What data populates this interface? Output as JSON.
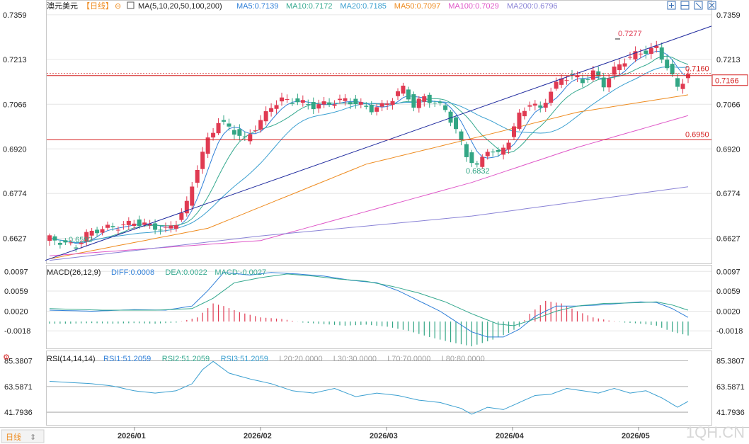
{
  "instrument": {
    "name": "澳元美元",
    "period": "日线",
    "period_bracketed": "【日线】",
    "ma_label": "MA(5,10,20,50,100,200)"
  },
  "legend": {
    "ma": [
      {
        "label": "MA5:0.7139",
        "color": "#2f7fd8"
      },
      {
        "label": "MA10:0.7172",
        "color": "#35a98f"
      },
      {
        "label": "MA20:0.7185",
        "color": "#3a9fd0"
      },
      {
        "label": "MA50:0.7097",
        "color": "#ee8b1f"
      },
      {
        "label": "MA100:0.7029",
        "color": "#df57c8"
      },
      {
        "label": "MA200:0.6796",
        "color": "#8a83d6"
      }
    ],
    "macd_title": "MACD(26,12,9)",
    "macd": [
      {
        "label": "DIFF:0.0008",
        "color": "#2f7fd8"
      },
      {
        "label": "DEA:0.0022",
        "color": "#35a98f"
      },
      {
        "label": "MACD:-0.0027",
        "color": "#35a98f"
      }
    ],
    "rsi_title": "RSI(14,14,14)",
    "rsi": [
      {
        "label": "RSI1:51.2059",
        "color": "#2f7fd8"
      },
      {
        "label": "RSI2:51.2059",
        "color": "#35a98f"
      },
      {
        "label": "RSI3:51.2059",
        "color": "#3a9fd0"
      },
      {
        "label": "L20:20.0000",
        "color": "#a0a0a0"
      },
      {
        "label": "L30:30.0000",
        "color": "#a0a0a0"
      },
      {
        "label": "L70:70.0000",
        "color": "#a0a0a0"
      },
      {
        "label": "L80:80.0000",
        "color": "#a0a0a0"
      }
    ]
  },
  "colors": {
    "up": "#e03a52",
    "down": "#33a685",
    "trendline": "#1f2a9e",
    "hline": "#d42020",
    "grid": "#e6e6e6"
  },
  "annotations": {
    "high": "0.7277",
    "low_mid": "0.6832",
    "low_start": "0.6592",
    "level_upper": "0.7160",
    "level_lower": "0.6950",
    "current": "0.7166"
  },
  "bottom_bar": {
    "period_label": "日线",
    "brand": "1QH.CN"
  },
  "chart_data": [
    {
      "type": "candlestick",
      "title": "澳元美元【日线】",
      "x_ticks": [
        "2026/01",
        "2026/02",
        "2026/03",
        "2026/04",
        "2026/05"
      ],
      "y_ticks": [
        "0.7359",
        "0.7213",
        "0.7066",
        "0.6920",
        "0.6774",
        "0.6627"
      ],
      "ylim": [
        0.6545,
        0.7375
      ],
      "horizontal_levels": [
        0.716,
        0.695
      ],
      "current_price": 0.7166,
      "trendline": [
        [
          0,
          0.6555
        ],
        [
          121,
          0.7295
        ]
      ],
      "anchors": [
        [
          0,
          0.6627
        ],
        [
          3,
          0.661
        ],
        [
          5,
          0.66
        ],
        [
          7,
          0.664
        ],
        [
          10,
          0.666
        ],
        [
          13,
          0.6665
        ],
        [
          16,
          0.668
        ],
        [
          19,
          0.6668
        ],
        [
          22,
          0.6655
        ],
        [
          24,
          0.668
        ],
        [
          26,
          0.674
        ],
        [
          28,
          0.686
        ],
        [
          30,
          0.695
        ],
        [
          32,
          0.701
        ],
        [
          34,
          0.699
        ],
        [
          37,
          0.695
        ],
        [
          40,
          0.701
        ],
        [
          42,
          0.706
        ],
        [
          44,
          0.708
        ],
        [
          47,
          0.7075
        ],
        [
          50,
          0.706
        ],
        [
          53,
          0.707
        ],
        [
          56,
          0.708
        ],
        [
          58,
          0.707
        ],
        [
          61,
          0.705
        ],
        [
          63,
          0.706
        ],
        [
          65,
          0.7085
        ],
        [
          67,
          0.712
        ],
        [
          69,
          0.706
        ],
        [
          71,
          0.709
        ],
        [
          73,
          0.707
        ],
        [
          75,
          0.705
        ],
        [
          77,
          0.698
        ],
        [
          79,
          0.69
        ],
        [
          81,
          0.686
        ],
        [
          83,
          0.692
        ],
        [
          85,
          0.69
        ],
        [
          87,
          0.695
        ],
        [
          89,
          0.703
        ],
        [
          91,
          0.707
        ],
        [
          93,
          0.705
        ],
        [
          95,
          0.711
        ],
        [
          97,
          0.715
        ],
        [
          99,
          0.716
        ],
        [
          101,
          0.714
        ],
        [
          103,
          0.717
        ],
        [
          105,
          0.713
        ],
        [
          107,
          0.718
        ],
        [
          109,
          0.721
        ],
        [
          111,
          0.723
        ],
        [
          113,
          0.724
        ],
        [
          115,
          0.725
        ],
        [
          117,
          0.719
        ],
        [
          119,
          0.712
        ],
        [
          121,
          0.7166
        ]
      ]
    },
    {
      "type": "line",
      "title": "MACD(26,12,9)",
      "y_ticks": [
        "0.0097",
        "0.0059",
        "0.0020",
        "-0.0018"
      ],
      "ylim": [
        -0.0052,
        0.0107
      ],
      "diff": [
        [
          0,
          0.0022
        ],
        [
          8,
          0.002
        ],
        [
          16,
          0.0023
        ],
        [
          22,
          0.0022
        ],
        [
          27,
          0.003
        ],
        [
          30,
          0.006
        ],
        [
          33,
          0.0095
        ],
        [
          38,
          0.009
        ],
        [
          42,
          0.0095
        ],
        [
          47,
          0.0092
        ],
        [
          52,
          0.0088
        ],
        [
          57,
          0.008
        ],
        [
          62,
          0.0075
        ],
        [
          66,
          0.006
        ],
        [
          70,
          0.004
        ],
        [
          74,
          0.002
        ],
        [
          77,
          0.0
        ],
        [
          80,
          -0.002
        ],
        [
          83,
          -0.003
        ],
        [
          86,
          -0.003
        ],
        [
          89,
          -0.0015
        ],
        [
          92,
          0.001
        ],
        [
          96,
          0.003
        ],
        [
          100,
          0.003
        ],
        [
          104,
          0.0032
        ],
        [
          108,
          0.0035
        ],
        [
          112,
          0.0038
        ],
        [
          115,
          0.0037
        ],
        [
          118,
          0.0025
        ],
        [
          121,
          0.0008
        ]
      ],
      "dea": [
        [
          0,
          0.0025
        ],
        [
          10,
          0.0022
        ],
        [
          20,
          0.0022
        ],
        [
          27,
          0.0025
        ],
        [
          31,
          0.0045
        ],
        [
          35,
          0.0075
        ],
        [
          40,
          0.0085
        ],
        [
          45,
          0.0092
        ],
        [
          50,
          0.0088
        ],
        [
          55,
          0.0082
        ],
        [
          60,
          0.0078
        ],
        [
          65,
          0.0068
        ],
        [
          70,
          0.0055
        ],
        [
          75,
          0.0038
        ],
        [
          80,
          0.0015
        ],
        [
          85,
          -0.0005
        ],
        [
          88,
          -0.0008
        ],
        [
          92,
          0.0005
        ],
        [
          96,
          0.002
        ],
        [
          100,
          0.003
        ],
        [
          105,
          0.0035
        ],
        [
          110,
          0.0036
        ],
        [
          115,
          0.0038
        ],
        [
          118,
          0.0032
        ],
        [
          121,
          0.0022
        ]
      ],
      "hist": [
        [
          0,
          -0.0004
        ],
        [
          4,
          -0.0004
        ],
        [
          8,
          -0.0003
        ],
        [
          12,
          -0.0004
        ],
        [
          16,
          -0.0003
        ],
        [
          20,
          -0.0004
        ],
        [
          24,
          -0.0002
        ],
        [
          28,
          0.0008
        ],
        [
          31,
          0.0035
        ],
        [
          33,
          0.003
        ],
        [
          36,
          0.0018
        ],
        [
          40,
          0.0008
        ],
        [
          44,
          0.0005
        ],
        [
          48,
          -0.0002
        ],
        [
          52,
          -0.0005
        ],
        [
          56,
          -0.0008
        ],
        [
          60,
          -0.0006
        ],
        [
          64,
          -0.001
        ],
        [
          68,
          -0.0018
        ],
        [
          72,
          -0.003
        ],
        [
          76,
          -0.004
        ],
        [
          80,
          -0.0048
        ],
        [
          84,
          -0.0035
        ],
        [
          87,
          -0.0022
        ],
        [
          89,
          -0.001
        ],
        [
          91,
          0.0015
        ],
        [
          94,
          0.004
        ],
        [
          97,
          0.0035
        ],
        [
          100,
          0.002
        ],
        [
          103,
          0.0008
        ],
        [
          106,
          0.0002
        ],
        [
          109,
          -0.0002
        ],
        [
          112,
          -0.0004
        ],
        [
          115,
          -0.0008
        ],
        [
          118,
          -0.002
        ],
        [
          121,
          -0.0027
        ]
      ]
    },
    {
      "type": "line",
      "title": "RSI(14,14,14)",
      "y_ticks": [
        "85.3807",
        "63.5871",
        "41.7936"
      ],
      "ylim": [
        31,
        93
      ],
      "series": [
        [
          0,
          68
        ],
        [
          4,
          67
        ],
        [
          8,
          66
        ],
        [
          12,
          64
        ],
        [
          16,
          60
        ],
        [
          20,
          58
        ],
        [
          24,
          60
        ],
        [
          27,
          66
        ],
        [
          29,
          78
        ],
        [
          31,
          85
        ],
        [
          34,
          75
        ],
        [
          38,
          70
        ],
        [
          42,
          66
        ],
        [
          46,
          60
        ],
        [
          50,
          58
        ],
        [
          54,
          62
        ],
        [
          58,
          55
        ],
        [
          62,
          58
        ],
        [
          66,
          56
        ],
        [
          70,
          52
        ],
        [
          74,
          50
        ],
        [
          78,
          45
        ],
        [
          80,
          40
        ],
        [
          83,
          46
        ],
        [
          86,
          44
        ],
        [
          89,
          50
        ],
        [
          92,
          56
        ],
        [
          95,
          57
        ],
        [
          98,
          62
        ],
        [
          101,
          60
        ],
        [
          104,
          58
        ],
        [
          107,
          62
        ],
        [
          110,
          58
        ],
        [
          113,
          60
        ],
        [
          116,
          54
        ],
        [
          119,
          46
        ],
        [
          121,
          51
        ]
      ]
    }
  ]
}
